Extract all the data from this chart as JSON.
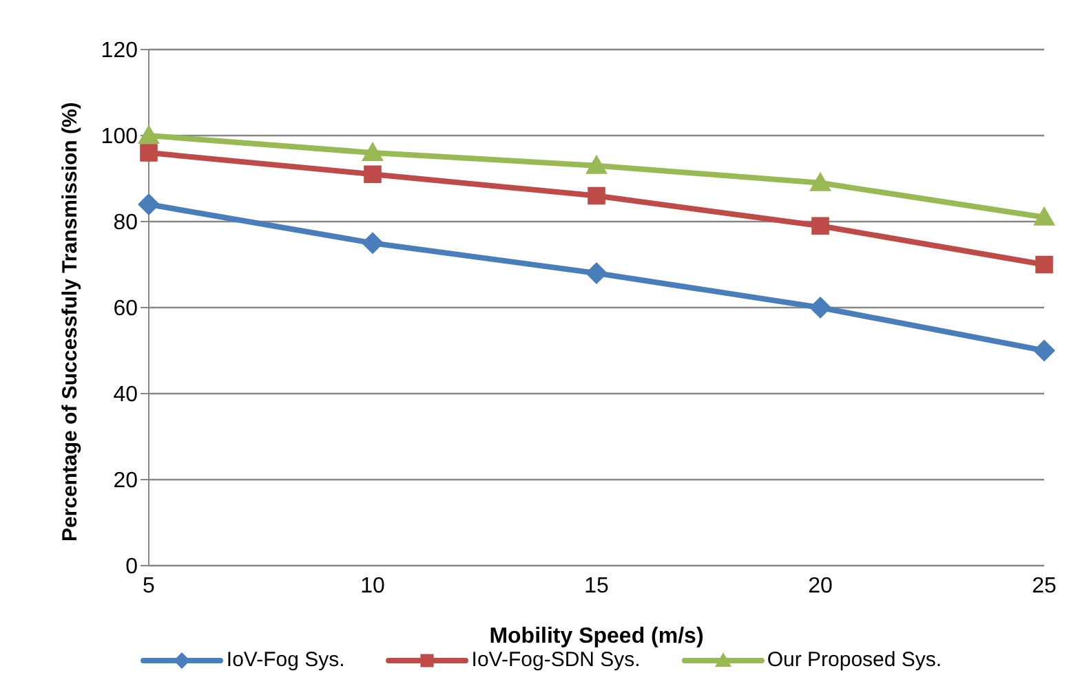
{
  "chart_data": {
    "type": "line",
    "xlabel": "Mobility Speed (m/s)",
    "ylabel": "Percentage of Successfuly Transmission (%)",
    "categories": [
      "5",
      "10",
      "15",
      "20",
      "25"
    ],
    "series": [
      {
        "name": "IoV-Fog Sys.",
        "color": "#4a7ebb",
        "marker": "diamond",
        "values": [
          84,
          75,
          68,
          60,
          50
        ]
      },
      {
        "name": "IoV-Fog-SDN Sys.",
        "color": "#be4b48",
        "marker": "square",
        "values": [
          96,
          91,
          86,
          79,
          70
        ]
      },
      {
        "name": "Our Proposed Sys.",
        "color": "#98b954",
        "marker": "triangle",
        "values": [
          100,
          96,
          93,
          89,
          81
        ]
      }
    ],
    "ylim": [
      0,
      120
    ],
    "yticks": [
      0,
      20,
      40,
      60,
      80,
      100,
      120
    ],
    "grid": "y",
    "legend": "bottom",
    "line_style": "solid"
  }
}
